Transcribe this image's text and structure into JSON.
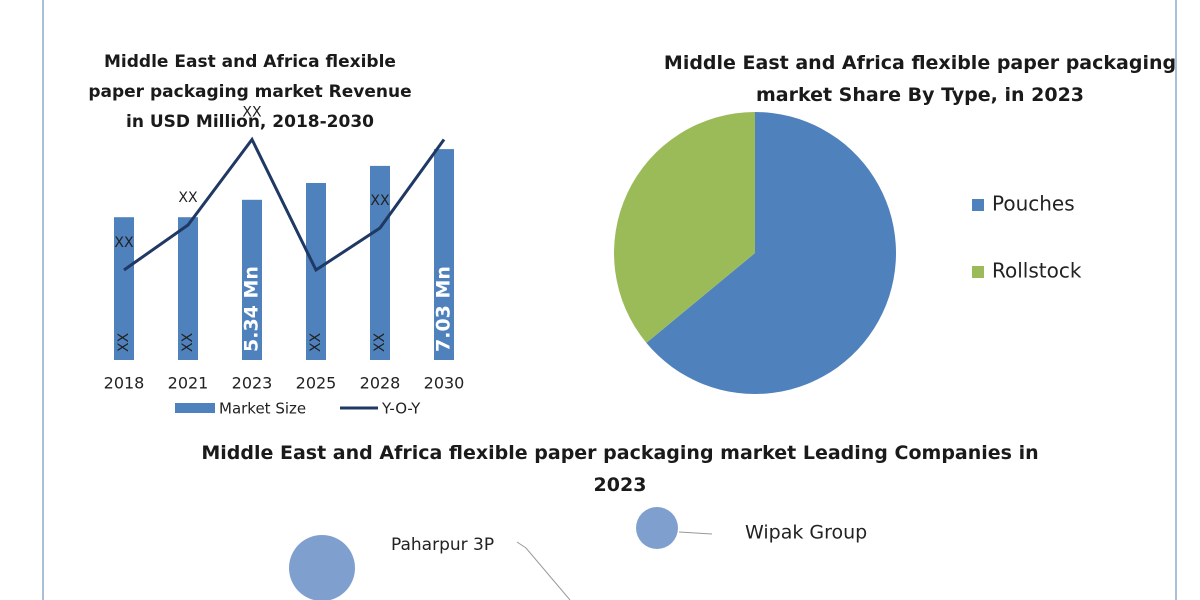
{
  "chart_data": [
    {
      "type": "bar",
      "title": "Middle East and Africa flexible paper packaging market Revenue in USD Million, 2018-2030",
      "categories": [
        "2018",
        "2021",
        "2023",
        "2025",
        "2028",
        "2030"
      ],
      "ylim": [
        0,
        7.5
      ],
      "y2lim": [
        0,
        15
      ],
      "series": [
        {
          "name": "Market Size",
          "type": "bar",
          "color": "#4f81bd",
          "values": [
            4.76,
            4.76,
            5.34,
            5.9,
            6.47,
            7.03
          ],
          "value_labels": [
            "XX",
            "XX",
            "5.34 Mn",
            "XX",
            "XX",
            "7.03 Mn"
          ]
        },
        {
          "name": "Y-O-Y",
          "type": "line",
          "axis": "y2",
          "color": "#1f3864",
          "values": [
            6,
            9,
            14.7,
            6,
            8.8,
            14.7
          ],
          "value_labels": [
            "XX",
            "XX",
            "XX",
            null,
            "XX",
            null
          ]
        }
      ]
    },
    {
      "type": "pie",
      "title": "Middle East and Africa flexible paper packaging market Share By Type, in 2023",
      "categories": [
        "Pouches",
        "Rollstock"
      ],
      "values": [
        64,
        36
      ],
      "colors": [
        "#4f81bd",
        "#9bbb59"
      ]
    }
  ],
  "companies": {
    "title": "Middle East and Africa flexible paper packaging market Leading Companies in 2023",
    "names": [
      "Wipak Group",
      "Paharpur 3P"
    ]
  }
}
